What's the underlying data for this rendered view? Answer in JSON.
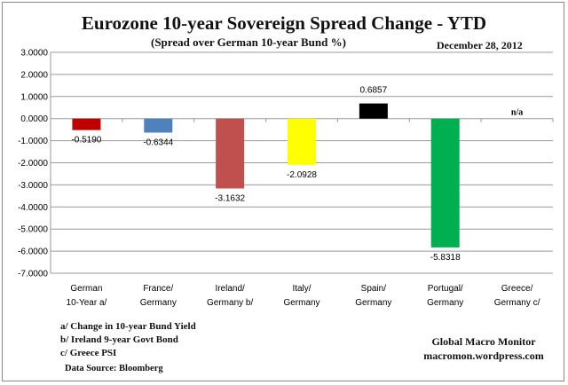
{
  "chart_data": {
    "type": "bar",
    "title": "Eurozone 10-year Sovereign Spread Change - YTD",
    "subtitle": "(Spread over German 10-year Bund %)",
    "date": "December 28,  2012",
    "categories": [
      [
        "German",
        "10-Year a/"
      ],
      [
        "France/",
        "Germany"
      ],
      [
        "Ireland/",
        "Germany b/"
      ],
      [
        "Italy/",
        "Germany"
      ],
      [
        "Spain/",
        "Germany"
      ],
      [
        "Portugal/",
        "Germany"
      ],
      [
        "Greece/",
        "Germany c/"
      ]
    ],
    "values": [
      -0.519,
      -0.6344,
      -3.1632,
      -2.0928,
      0.6857,
      -5.8318,
      null
    ],
    "data_labels": [
      "-0.5190",
      "-0.6344",
      "-3.1632",
      "-2.0928",
      "0.6857",
      "-5.8318",
      "n/a"
    ],
    "colors": [
      "#c00000",
      "#4f81bd",
      "#c0504d",
      "#ffff00",
      "#000000",
      "#00b050",
      null
    ],
    "ylim": [
      -7,
      3
    ],
    "yticks": [
      "3.0000",
      "2.0000",
      "1.0000",
      "0.0000",
      "-1.0000",
      "-2.0000",
      "-3.0000",
      "-4.0000",
      "-5.0000",
      "-6.0000",
      "-7.0000"
    ],
    "grid": true,
    "legend": "none"
  },
  "notes": [
    "a/  Change in 10-year Bund Yield",
    "b/  Ireland 9-year Govt Bond",
    "c/  Greece PSI"
  ],
  "source": "Data Source:  Bloomberg",
  "brand": {
    "name": "Global Macro Monitor",
    "url": "macromon.wordpress.com"
  }
}
